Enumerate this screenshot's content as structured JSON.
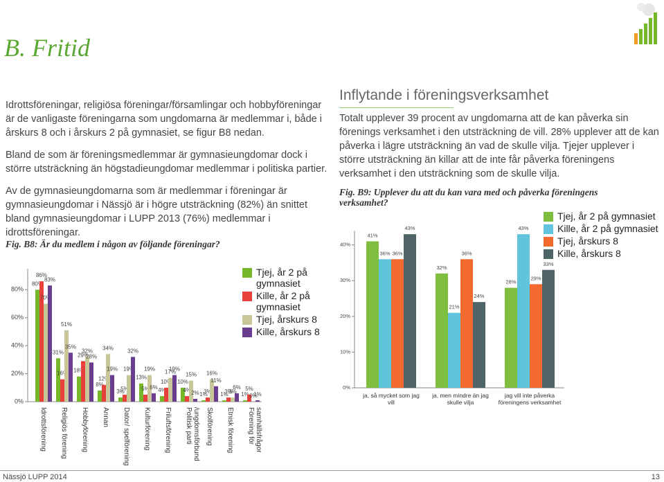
{
  "header": {
    "title": "B. Fritid"
  },
  "left_text": {
    "paragraphs": [
      "Idrottsföreningar, religiösa föreningar/församlingar och hobbyföreningar är de vanligaste föreningarna som ungdomarna är medlemmar i, både i årskurs 8 och i årskurs 2 på gymnasiet, se figur B8 nedan.",
      "Bland de som är föreningsmedlemmar är gymnasieungdomar dock i större utsträckning än högstadieungdomar medlemmar i politiska partier.",
      "Av de gymnasieungdomarna som är medlemmar i föreningar är gymnasieungdomar i Nässjö är i högre utsträckning (82%) än snittet bland gymnasieungdomar i LUPP 2013 (76%) medlemmar i idrottsföreningar."
    ]
  },
  "right_text": {
    "heading": "Inflytande i föreningsverksamhet",
    "paragraph": "Totalt upplever 39 procent av ungdomarna att de kan påverka sin förenings verksamhet i den utsträckning de vill. 28% upplever att de kan påverka i lägre utsträckning än vad de skulle vilja. Tjejer upplever i större utsträckning än killar att de inte får påverka föreningens verksamhet i den utsträckning som de skulle vilja."
  },
  "chart_data": [
    {
      "type": "bar",
      "title": "Fig. B8: Är du medlem i någon av följande föreningar?",
      "categories": [
        "Idrottsförening",
        "Religiös förening",
        "Hobbyförening",
        "Annan",
        "Dator/ spelförening",
        "Kulturförening",
        "Friluftsförening",
        "Politisk parti /ungdomsförbund",
        "Skolförening",
        "Etnisk förening",
        "Förening för samhällsfrågor"
      ],
      "series": [
        {
          "name": "Tjej, år 2 på gymnasiet",
          "color": "#76b82a",
          "values": [
            80,
            31,
            18,
            8,
            3,
            13,
            4,
            10,
            1,
            1,
            1
          ],
          "value_labels": [
            "80%",
            "31%",
            "18%",
            "8%",
            "3%",
            "13%",
            "4%",
            "10%",
            "1%",
            "1%",
            "1%"
          ]
        },
        {
          "name": "Kille, år 2 på gymnasiet",
          "color": "#e8403a",
          "values": [
            86,
            16,
            29,
            12,
            5,
            5,
            10,
            4,
            3,
            3,
            5
          ],
          "value_labels": [
            "86%",
            "16%",
            "29%",
            "12%",
            "5%",
            "5%",
            "10%",
            "4%",
            "3%",
            "3%",
            "5%"
          ]
        },
        {
          "name": "Tjej, årskurs 8",
          "color": "#c9c79a",
          "values": [
            70,
            51,
            32,
            34,
            19,
            19,
            17,
            15,
            16,
            3,
            0
          ],
          "value_labels": [
            "70%",
            "51%",
            "32%",
            "34%",
            "19%",
            "19%",
            "17%",
            "15%",
            "16%",
            "3%",
            "0%"
          ]
        },
        {
          "name": "Kille, årskurs 8",
          "color": "#6a3d8f",
          "values": [
            83,
            35,
            28,
            19,
            32,
            6,
            19,
            2,
            11,
            6,
            1
          ],
          "value_labels": [
            "83%",
            "35%",
            "28%",
            "19%",
            "32%",
            "6%",
            "19%",
            "2%",
            "11%",
            "6%",
            "1%"
          ]
        }
      ],
      "ylim": [
        0,
        95
      ],
      "yticks": [
        {
          "value": 0,
          "label": "0%"
        },
        {
          "value": 20,
          "label": "20%"
        },
        {
          "value": 40,
          "label": "40%"
        },
        {
          "value": 60,
          "label": "60%"
        },
        {
          "value": 80,
          "label": "80%"
        }
      ]
    },
    {
      "type": "bar",
      "title": "Fig. B9: Upplever du att du kan vara med och påverka föreningens verksamhet?",
      "categories": [
        "ja, så mycket som jag vill",
        "ja, men mindre än jag skulle vilja",
        "jag vill inte påverka föreningens verksamhet"
      ],
      "series": [
        {
          "name": "Tjej, år 2 på gymnasiet",
          "color": "#7fbf3f",
          "values": [
            41,
            32,
            28
          ],
          "value_labels": [
            "41%",
            "32%",
            "28%"
          ]
        },
        {
          "name": "Kille, år 2 på gymnasiet",
          "color": "#5fc4dc",
          "values": [
            36,
            21,
            43
          ],
          "value_labels": [
            "36%",
            "21%",
            "43%"
          ]
        },
        {
          "name": "Tjej, årskurs 8",
          "color": "#f26a2e",
          "values": [
            36,
            36,
            29
          ],
          "value_labels": [
            "36%",
            "36%",
            "29%"
          ]
        },
        {
          "name": "Kille, årskurs 8",
          "color": "#4f6467",
          "values": [
            43,
            24,
            33
          ],
          "value_labels": [
            "43%",
            "24%",
            "33%"
          ]
        }
      ],
      "ylim": [
        0,
        44
      ],
      "yticks": [
        {
          "value": 0,
          "label": "0%"
        },
        {
          "value": 10,
          "label": "10%"
        },
        {
          "value": 20,
          "label": "20%"
        },
        {
          "value": 30,
          "label": "30%"
        },
        {
          "value": 40,
          "label": "40%"
        }
      ]
    }
  ],
  "footer": {
    "left": "Nässjö LUPP 2014",
    "page": "13"
  }
}
